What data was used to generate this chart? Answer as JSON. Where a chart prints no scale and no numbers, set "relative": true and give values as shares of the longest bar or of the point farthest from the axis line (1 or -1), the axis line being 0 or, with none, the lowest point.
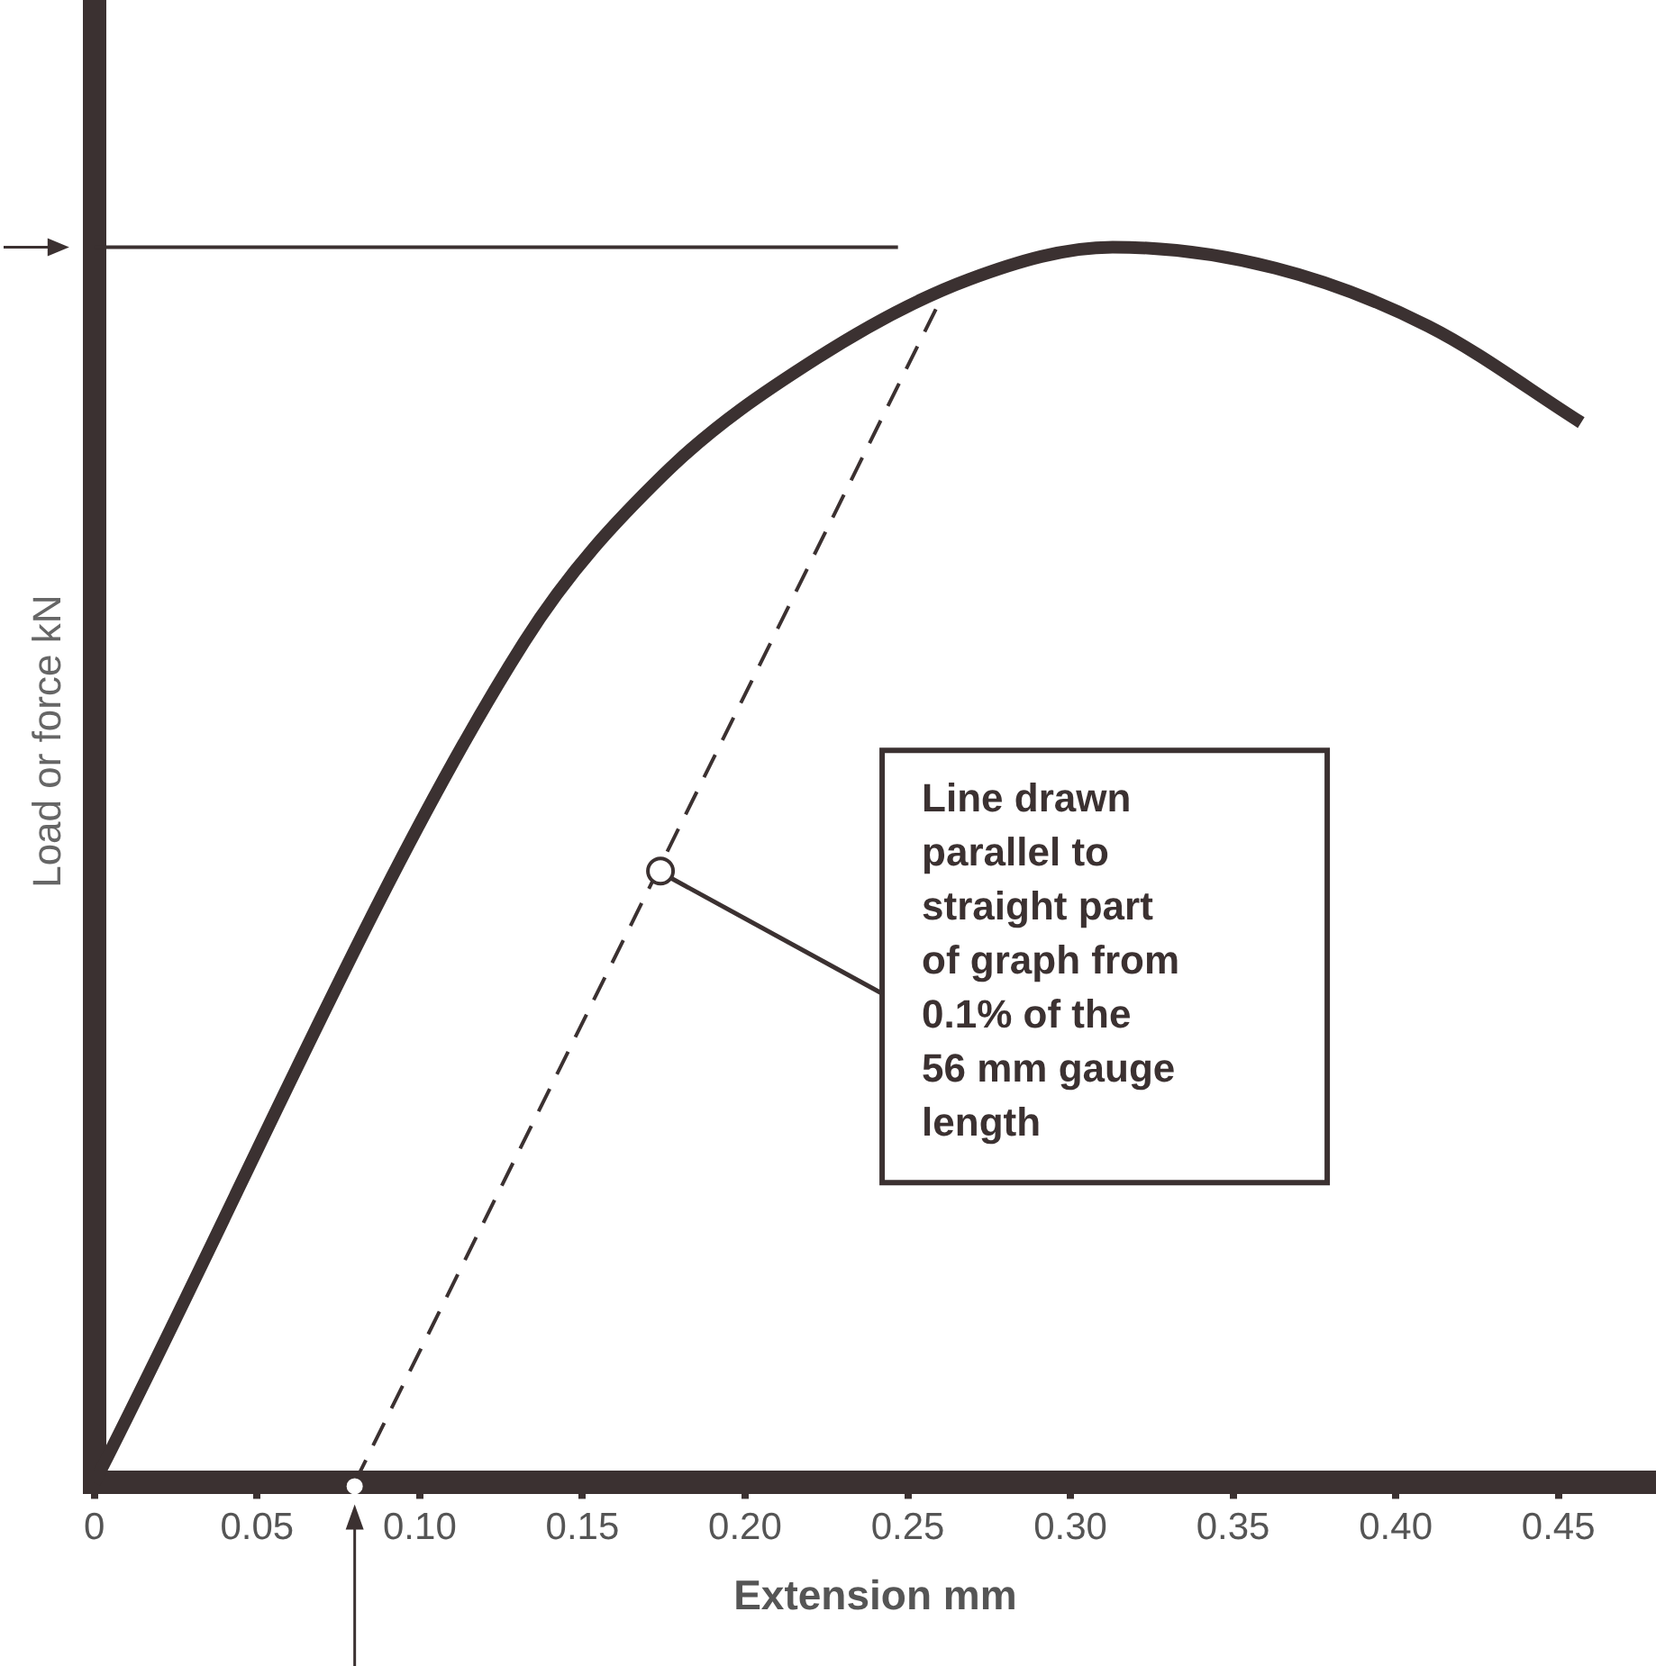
{
  "chart_data": {
    "type": "line",
    "relative": true,
    "xlabel": "Extension mm",
    "ylabel": "Load or force kN",
    "xlim": [
      0,
      0.48
    ],
    "xticks": [
      0,
      0.05,
      {
        "value": 0.1,
        "label": "0.10"
      },
      {
        "value": 0.15,
        "label": "0.15"
      },
      {
        "value": 0.2,
        "label": "0.20"
      },
      {
        "value": 0.25,
        "label": "0.25"
      },
      {
        "value": 0.3,
        "label": "0.30"
      },
      {
        "value": 0.35,
        "label": "0.35"
      },
      {
        "value": 0.4,
        "label": "0.40"
      },
      {
        "value": 0.45,
        "label": "0.45"
      }
    ],
    "series": [
      {
        "color": "#3b3131",
        "line_style": "solid",
        "x": [
          0,
          0.132,
          0.175,
          0.222,
          0.269,
          0.313,
          0.363,
          0.41,
          0.457
        ],
        "values": [
          0,
          0.68,
          0.816,
          0.91,
          0.974,
          1,
          0.983,
          0.936,
          0.858
        ]
      },
      {
        "color": "#3b3131",
        "line_style": "dashed",
        "x": [
          0.08,
          0.26
        ],
        "values": [
          0,
          0.957
        ]
      },
      {
        "color": "#3b3131",
        "line_style": "solid",
        "x": [
          0,
          0.247
        ],
        "values": [
          1,
          1
        ]
      }
    ],
    "annotations": [
      {
        "text": "Line drawn parallel to straight part of graph from 0.1% of the 56 mm gauge length",
        "x": 0.174,
        "y": 0.495
      }
    ],
    "grid": false,
    "legend": false
  }
}
